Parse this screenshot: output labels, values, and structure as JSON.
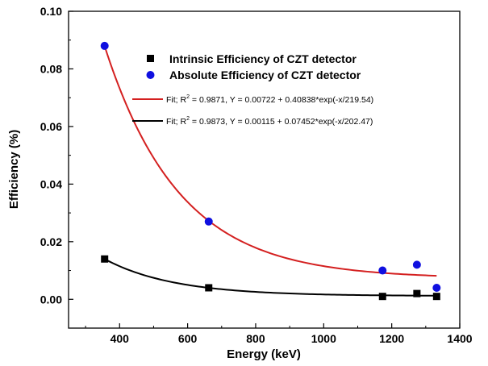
{
  "chart_data": {
    "type": "scatter",
    "xlabel": "Energy (keV)",
    "ylabel": "Efficiency (%)",
    "xlim": [
      250,
      1400
    ],
    "ylim": [
      -0.01,
      0.1
    ],
    "x_ticks": [
      400,
      600,
      800,
      1000,
      1200,
      1400
    ],
    "y_ticks": [
      0.0,
      0.02,
      0.04,
      0.06,
      0.08,
      0.1
    ],
    "x_tick_labels": [
      "400",
      "600",
      "800",
      "1000",
      "1200",
      "1400"
    ],
    "y_tick_labels": [
      "0.00",
      "0.02",
      "0.04",
      "0.06",
      "0.08",
      "0.10"
    ],
    "grid": false,
    "legend_placement": "top-right",
    "series": [
      {
        "name": "Intrinsic Efficiency of CZT detector",
        "marker": "square",
        "color": "#000000",
        "x": [
          356,
          662,
          1173,
          1274,
          1332
        ],
        "y": [
          0.014,
          0.004,
          0.001,
          0.002,
          0.001
        ]
      },
      {
        "name": "Absolute Efficiency of CZT detector",
        "marker": "circle",
        "color": "#1010e0",
        "x": [
          356,
          662,
          1173,
          1274,
          1332
        ],
        "y": [
          0.088,
          0.027,
          0.01,
          0.012,
          0.004
        ]
      }
    ],
    "fits": [
      {
        "label_pre": "Fit; R",
        "label_sup": "2",
        "label_post": " = 0.9871, Y = 0.00722 + 0.40838*exp(-x/219.54)",
        "color": "#d42020",
        "y0": 0.00722,
        "A": 0.40838,
        "t": 219.54,
        "x_range": [
          356,
          1332
        ]
      },
      {
        "label_pre": "Fit; R",
        "label_sup": "2",
        "label_post": " = 0.9873, Y = 0.00115 + 0.07452*exp(-x/202.47)",
        "color": "#000000",
        "y0": 0.00115,
        "A": 0.07452,
        "t": 202.47,
        "x_range": [
          356,
          1332
        ]
      }
    ]
  }
}
